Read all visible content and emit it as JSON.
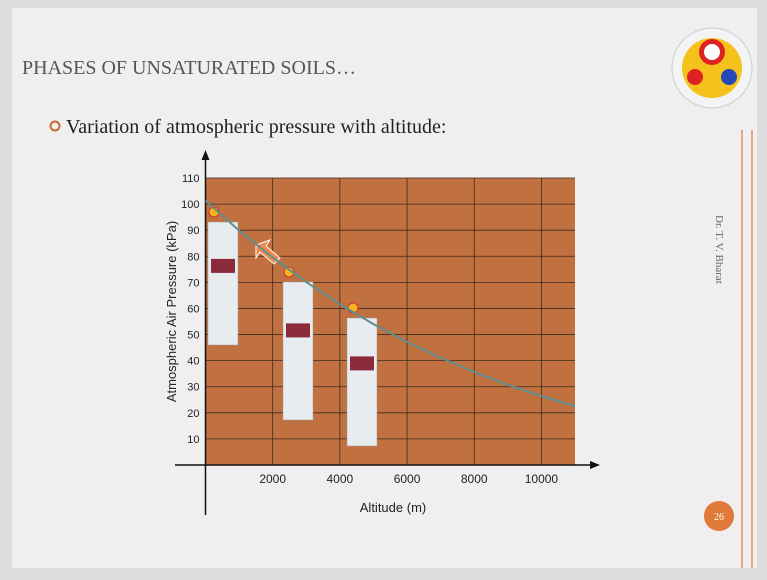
{
  "slide": {
    "title": "PHASES OF UNSATURATED SOILS…",
    "bullet": "Variation of atmospheric pressure with altitude:",
    "author": "Dr. T. V. Bharat",
    "page_number": "26"
  },
  "chart_data": {
    "type": "line",
    "x_label": "Altitude (m)",
    "y_label": "Atmospheric Air Pressure (kPa)",
    "x": [
      0,
      1000,
      2000,
      3000,
      4000,
      5000,
      6000,
      7000,
      8000,
      9000,
      10000,
      11000
    ],
    "series": [
      {
        "color": "#5f8f8f",
        "values": [
          101.3,
          89.9,
          79.5,
          70.1,
          61.6,
          54.0,
          47.2,
          41.1,
          35.6,
          30.7,
          26.4,
          22.6
        ]
      }
    ],
    "xlim": [
      0,
      11000
    ],
    "ylim": [
      0,
      110
    ],
    "xticks": [
      2000,
      4000,
      6000,
      8000,
      10000
    ],
    "yticks": [
      10,
      20,
      30,
      40,
      50,
      60,
      70,
      80,
      90,
      100,
      110
    ],
    "grid": true,
    "plot_color": "#c1713f"
  }
}
